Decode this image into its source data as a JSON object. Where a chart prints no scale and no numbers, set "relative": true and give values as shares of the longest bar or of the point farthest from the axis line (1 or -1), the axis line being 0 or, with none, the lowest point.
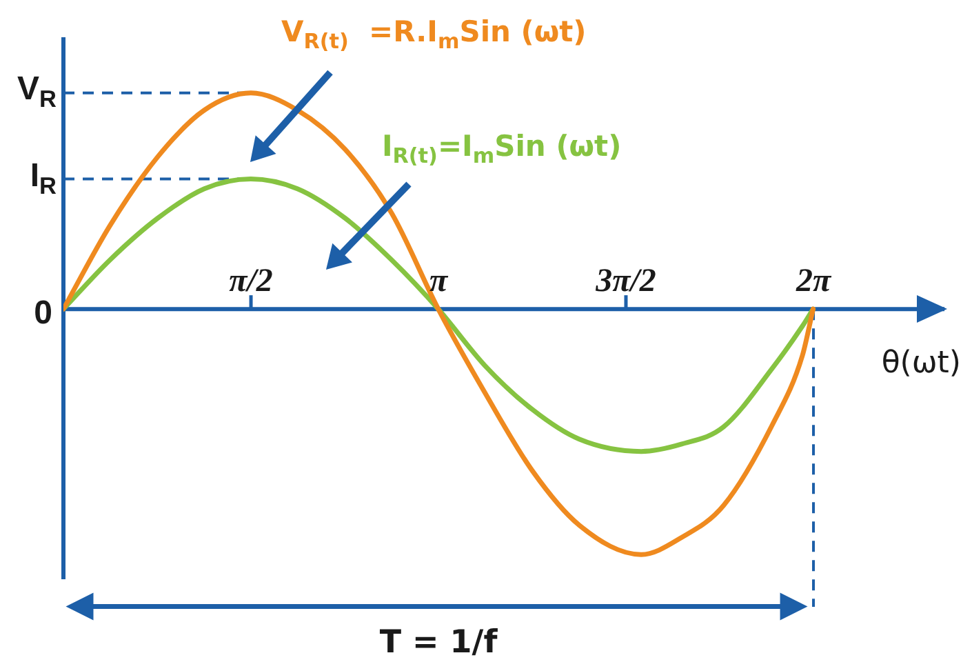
{
  "chart_data": {
    "type": "line",
    "relative": true,
    "x": [
      0,
      0.39,
      0.79,
      1.18,
      1.57,
      1.96,
      2.36,
      2.75,
      3.14,
      3.53,
      3.93,
      4.32,
      4.84,
      5.18,
      5.53,
      5.94,
      6.19,
      6.28
    ],
    "series": [
      {
        "name": "V$_{R(t)}$  =R.I$_{m}$Sin (ωt)",
        "color": "#ef8a1f",
        "values": [
          0,
          0.34,
          0.62,
          0.81,
          0.88,
          0.81,
          0.65,
          0.39,
          0,
          -0.34,
          -0.66,
          -0.88,
          -1,
          -0.93,
          -0.8,
          -0.47,
          -0.19,
          0
        ]
      },
      {
        "name": "I$_{R(t)}$=I$_{m}$Sin (ωt)",
        "color": "#86c341",
        "values": [
          0,
          0.2,
          0.37,
          0.49,
          0.53,
          0.49,
          0.37,
          0.2,
          0,
          -0.23,
          -0.41,
          -0.53,
          -0.58,
          -0.55,
          -0.48,
          -0.24,
          -0.07,
          0
        ]
      }
    ],
    "xlim": [
      0,
      7.38
    ],
    "xticks": [
      {
        "value": 1.571,
        "label": "π/2"
      },
      {
        "value": 3.142,
        "label": "π"
      },
      {
        "value": 4.712,
        "label": "3π/2"
      },
      {
        "value": 6.283,
        "label": "2π"
      }
    ],
    "xlabel": "θ(ωt)",
    "marker": "none",
    "line_style": "solid",
    "ref_lines": [
      {
        "axis": "y",
        "value": 0.88,
        "label": "V$_{R}$",
        "color": "#1d5fa8",
        "line_style": "dashed"
      },
      {
        "axis": "y",
        "value": 0.53,
        "label": "I$_{R}$",
        "color": "#1d5fa8",
        "line_style": "dashed"
      },
      {
        "axis": "x",
        "value": 6.283,
        "color": "#1d5fa8",
        "line_style": "dashed"
      }
    ],
    "annotations": [
      {
        "text": "0",
        "x": 0,
        "y": 0
      },
      "T = 1/f"
    ]
  }
}
